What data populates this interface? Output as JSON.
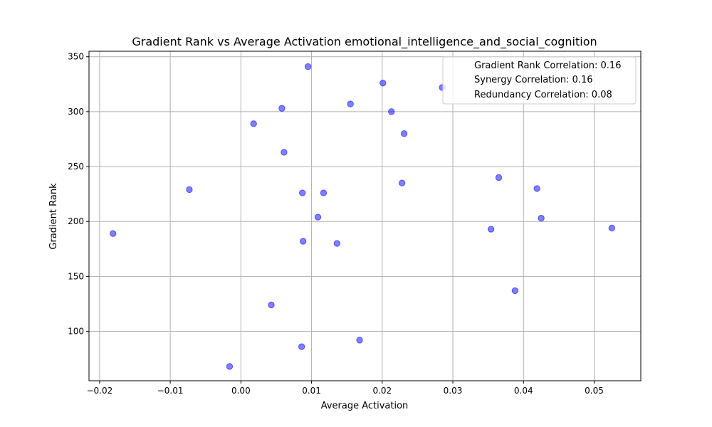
{
  "chart_data": {
    "type": "scatter",
    "title": "Gradient Rank vs Average Activation emotional_intelligence_and_social_cognition",
    "xlabel": "Average Activation",
    "ylabel": "Gradient Rank",
    "xlim": [
      -0.0215,
      0.0566
    ],
    "ylim": [
      55,
      355
    ],
    "xticks": [
      -0.02,
      -0.01,
      0.0,
      0.01,
      0.02,
      0.03,
      0.04,
      0.05
    ],
    "xtick_labels": [
      "−0.02",
      "−0.01",
      "0.00",
      "0.01",
      "0.02",
      "0.03",
      "0.04",
      "0.05"
    ],
    "yticks": [
      100,
      150,
      200,
      250,
      300,
      350
    ],
    "ytick_labels": [
      "100",
      "150",
      "200",
      "250",
      "300",
      "350"
    ],
    "grid": true,
    "marker_color": "#0000ff",
    "legend_position": "top-right",
    "legend": [
      "Gradient Rank Correlation: 0.16",
      "Synergy Correlation: 0.16",
      "Redundancy Correlation: 0.08"
    ],
    "points": [
      {
        "x": 0.0095,
        "y": 341
      },
      {
        "x": 0.0201,
        "y": 326
      },
      {
        "x": 0.0285,
        "y": 322
      },
      {
        "x": 0.0155,
        "y": 307
      },
      {
        "x": 0.0058,
        "y": 303
      },
      {
        "x": 0.0213,
        "y": 300
      },
      {
        "x": 0.0018,
        "y": 289
      },
      {
        "x": 0.0231,
        "y": 280
      },
      {
        "x": 0.0061,
        "y": 263
      },
      {
        "x": 0.0365,
        "y": 240
      },
      {
        "x": 0.0228,
        "y": 235
      },
      {
        "x": -0.0073,
        "y": 229
      },
      {
        "x": 0.0419,
        "y": 230
      },
      {
        "x": 0.0087,
        "y": 226
      },
      {
        "x": 0.0117,
        "y": 226
      },
      {
        "x": 0.0109,
        "y": 204
      },
      {
        "x": 0.0425,
        "y": 203
      },
      {
        "x": 0.0525,
        "y": 194
      },
      {
        "x": 0.0354,
        "y": 193
      },
      {
        "x": -0.0181,
        "y": 189
      },
      {
        "x": 0.0088,
        "y": 182
      },
      {
        "x": 0.0136,
        "y": 180
      },
      {
        "x": 0.0388,
        "y": 137
      },
      {
        "x": 0.0043,
        "y": 124
      },
      {
        "x": 0.0168,
        "y": 92
      },
      {
        "x": 0.0086,
        "y": 86
      },
      {
        "x": -0.0016,
        "y": 68
      }
    ]
  }
}
